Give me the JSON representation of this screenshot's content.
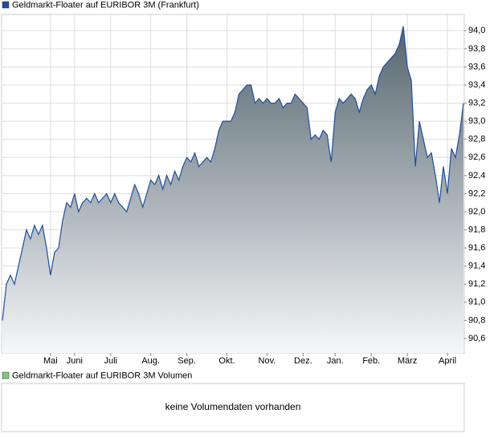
{
  "chart_data": {
    "type": "area",
    "series": [
      {
        "name": "Geldmarkt-Floater auf EURIBOR 3M (Frankfurt)",
        "color": "#1f4e9c",
        "values": [
          90.8,
          91.2,
          91.3,
          91.2,
          91.4,
          91.6,
          91.8,
          91.7,
          91.85,
          91.75,
          91.85,
          91.6,
          91.3,
          91.55,
          91.6,
          91.9,
          92.1,
          92.05,
          92.2,
          92.0,
          92.1,
          92.15,
          92.1,
          92.2,
          92.1,
          92.15,
          92.2,
          92.1,
          92.2,
          92.1,
          92.05,
          92.0,
          92.15,
          92.3,
          92.2,
          92.05,
          92.2,
          92.35,
          92.3,
          92.4,
          92.25,
          92.4,
          92.3,
          92.45,
          92.35,
          92.5,
          92.6,
          92.55,
          92.65,
          92.5,
          92.55,
          92.6,
          92.55,
          92.7,
          92.9,
          93.0,
          93.0,
          93.0,
          93.1,
          93.3,
          93.35,
          93.4,
          93.4,
          93.2,
          93.25,
          93.2,
          93.25,
          93.2,
          93.2,
          93.25,
          93.15,
          93.2,
          93.2,
          93.3,
          93.25,
          93.2,
          93.15,
          92.8,
          92.85,
          92.8,
          92.9,
          92.85,
          92.55,
          93.1,
          93.25,
          93.2,
          93.25,
          93.3,
          93.25,
          93.1,
          93.25,
          93.35,
          93.4,
          93.3,
          93.5,
          93.6,
          93.65,
          93.7,
          93.75,
          93.85,
          94.05,
          93.6,
          93.45,
          92.5,
          93.0,
          92.8,
          92.6,
          92.65,
          92.4,
          92.1,
          92.5,
          92.2,
          92.7,
          92.6,
          92.85,
          93.2
        ]
      }
    ],
    "categories": [
      null,
      null,
      null,
      null,
      null,
      null,
      null,
      null,
      null,
      null,
      null,
      null,
      "Mai",
      null,
      null,
      null,
      null,
      null,
      "Juni",
      null,
      null,
      null,
      null,
      null,
      null,
      null,
      null,
      "Juli",
      null,
      null,
      null,
      null,
      null,
      null,
      null,
      null,
      null,
      "Aug.",
      null,
      null,
      null,
      null,
      null,
      null,
      null,
      null,
      "Sep.",
      null,
      null,
      null,
      null,
      null,
      null,
      null,
      null,
      null,
      "Okt.",
      null,
      null,
      null,
      null,
      null,
      null,
      null,
      null,
      null,
      "Nov.",
      null,
      null,
      null,
      null,
      null,
      null,
      null,
      null,
      "Dez.",
      null,
      null,
      null,
      null,
      null,
      null,
      null,
      "Jan.",
      null,
      null,
      null,
      null,
      null,
      null,
      null,
      null,
      "Feb.",
      null,
      null,
      null,
      null,
      null,
      null,
      null,
      null,
      "März",
      null,
      null,
      null,
      null,
      null,
      null,
      null,
      null,
      null,
      "April",
      null,
      null,
      null,
      null
    ],
    "ylim": [
      90.44,
      94.18
    ],
    "yticks": [
      {
        "value": 90.6,
        "label": "90,6"
      },
      {
        "value": 90.8,
        "label": "90,8"
      },
      {
        "value": 91.0,
        "label": "91,0"
      },
      {
        "value": 91.2,
        "label": "91,2"
      },
      {
        "value": 91.4,
        "label": "91,4"
      },
      {
        "value": 91.6,
        "label": "91,6"
      },
      {
        "value": 91.8,
        "label": "91,8"
      },
      {
        "value": 92.0,
        "label": "92,0"
      },
      {
        "value": 92.2,
        "label": "92,2"
      },
      {
        "value": 92.4,
        "label": "92,4"
      },
      {
        "value": 92.6,
        "label": "92,6"
      },
      {
        "value": 92.8,
        "label": "92,8"
      },
      {
        "value": 93.0,
        "label": "93,0"
      },
      {
        "value": 93.2,
        "label": "93,2"
      },
      {
        "value": 93.4,
        "label": "93,4"
      },
      {
        "value": 93.6,
        "label": "93,6"
      },
      {
        "value": 93.8,
        "label": "93,8"
      },
      {
        "value": 94.0,
        "label": "94,0"
      }
    ],
    "grid": true
  },
  "volume_panel": {
    "legend": "Geldmarkt-Floater auf EURIBOR 3M Volumen",
    "color": "#7fc97f",
    "message": "keine Volumendaten vorhanden"
  }
}
